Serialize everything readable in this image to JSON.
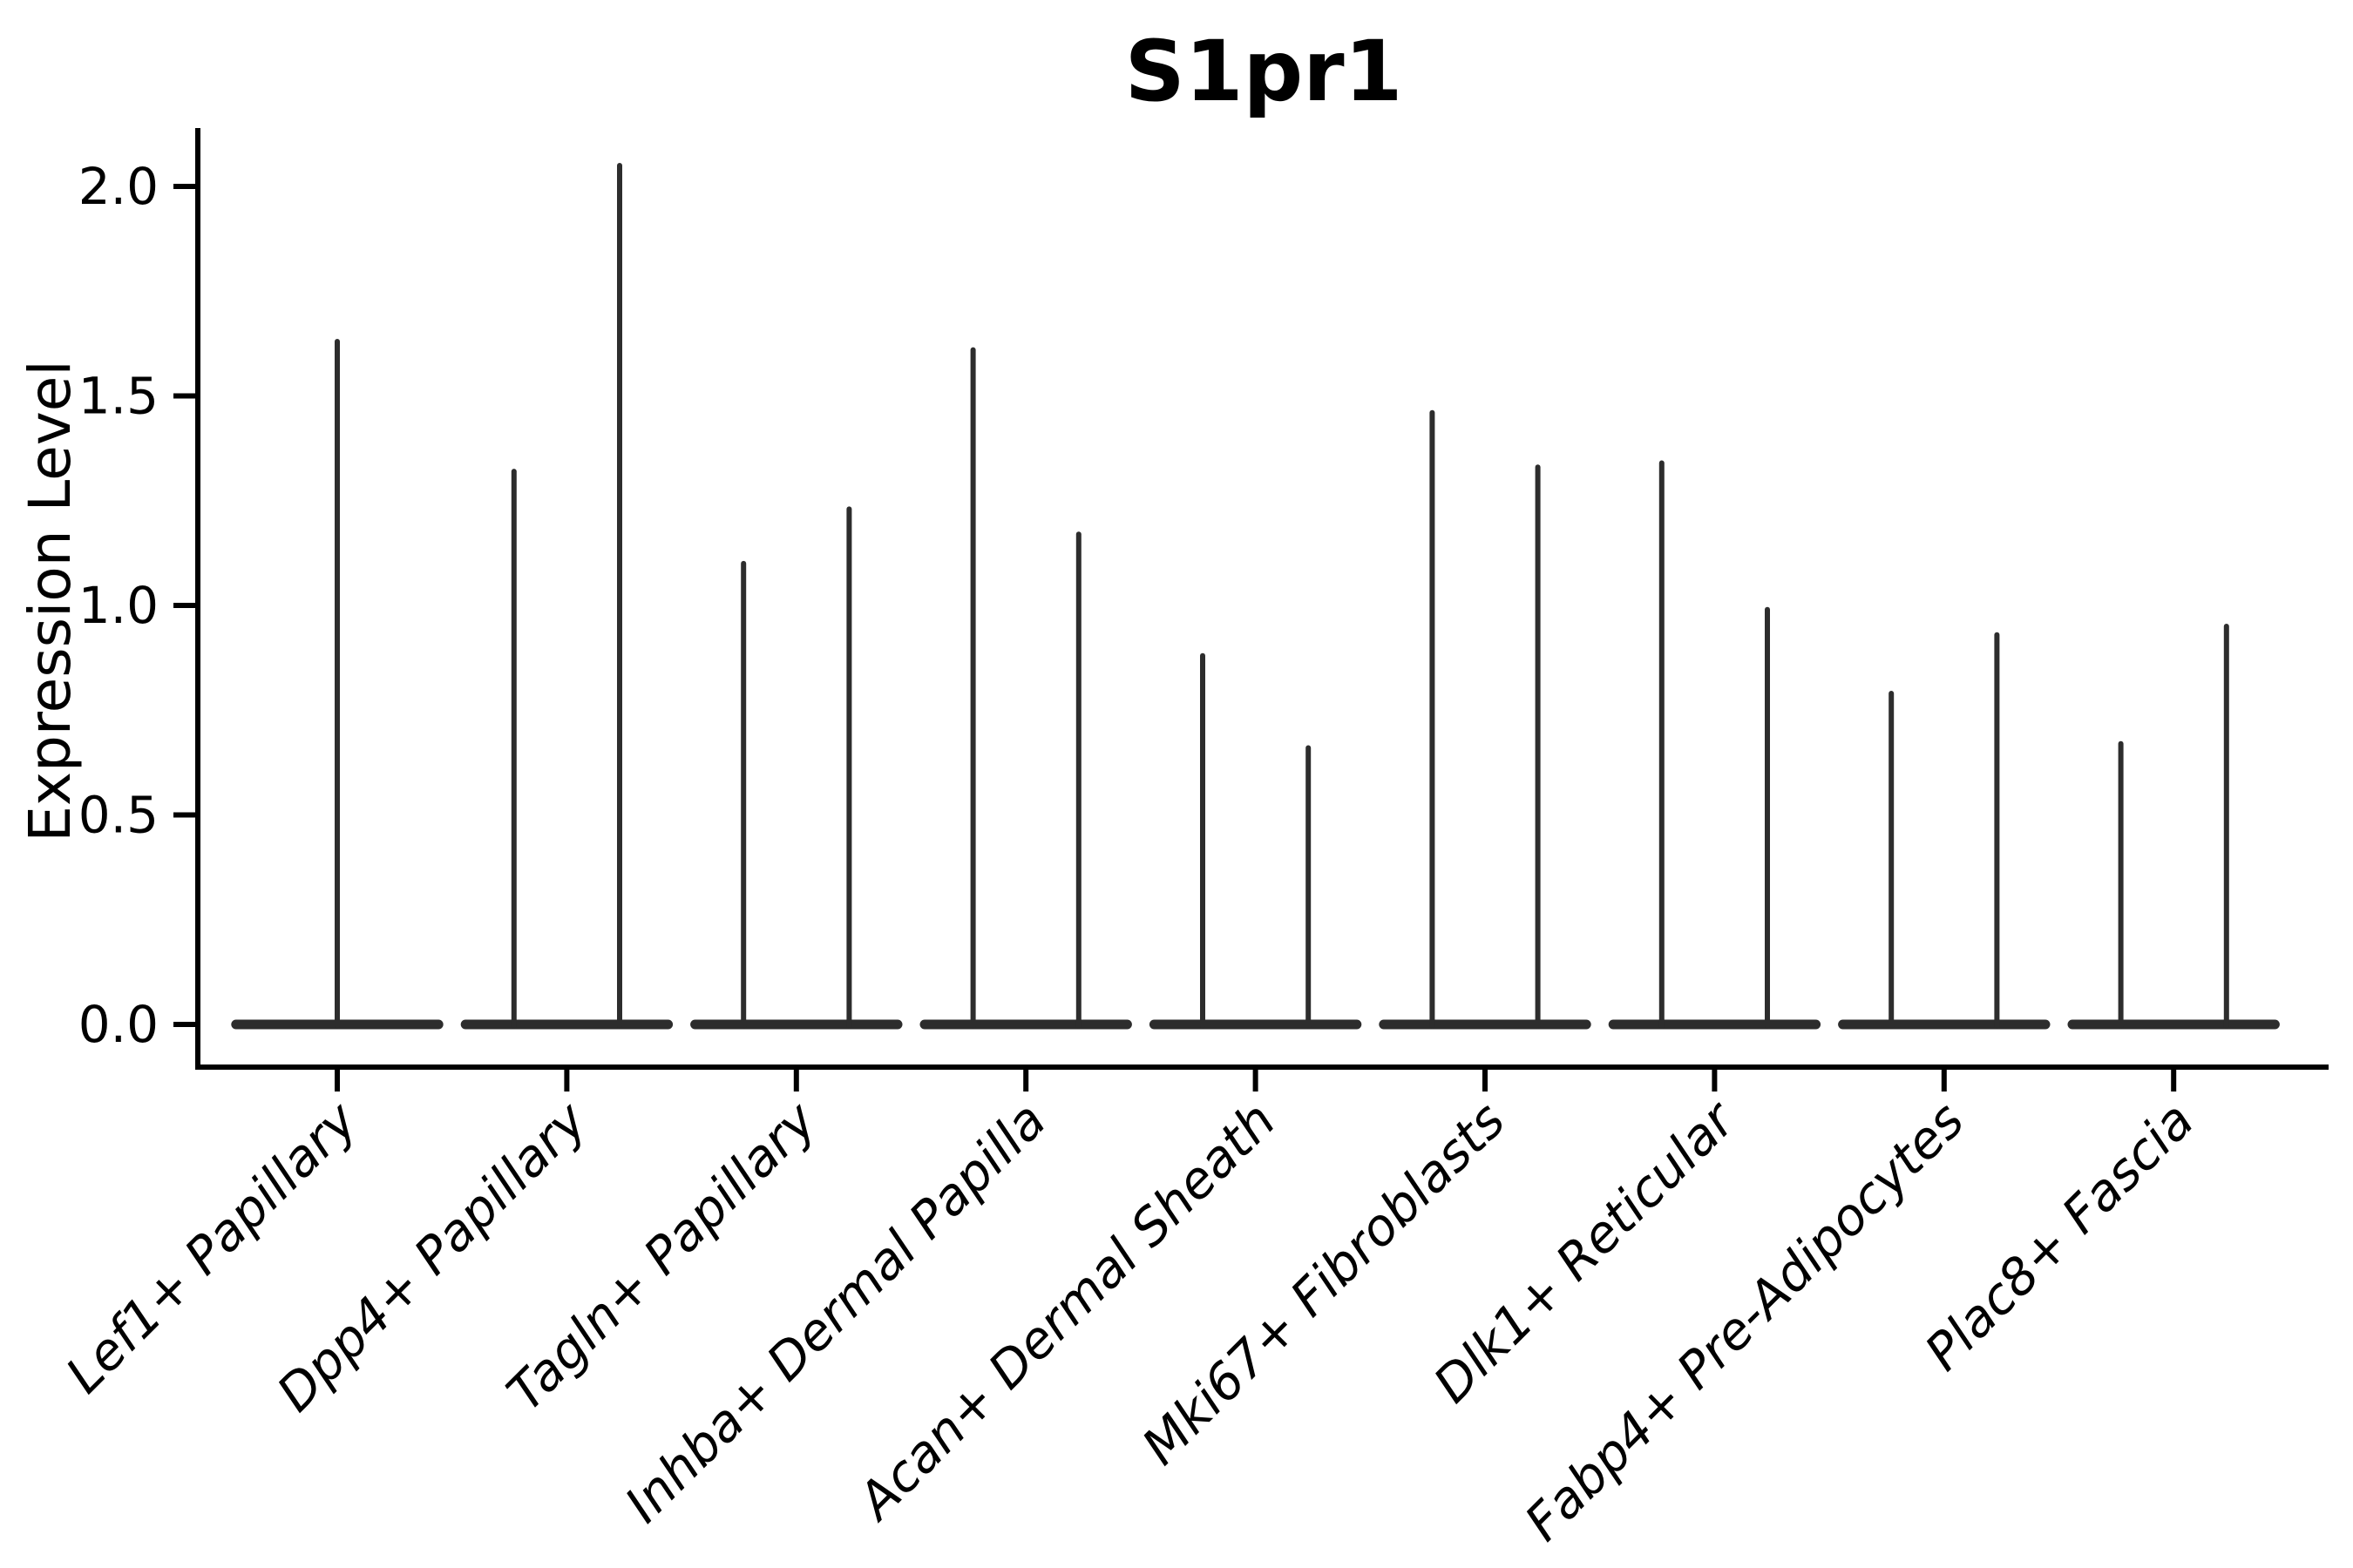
{
  "chart_data": {
    "type": "violin",
    "title": "S1pr1",
    "ylabel": "Expression Level",
    "xlabel": "",
    "ylim": [
      -0.1,
      2.13
    ],
    "yticks": [
      {
        "value": 0.0,
        "label": "0.0"
      },
      {
        "value": 0.5,
        "label": "0.5"
      },
      {
        "value": 1.0,
        "label": "1.0"
      },
      {
        "value": 1.5,
        "label": "1.5"
      },
      {
        "value": 2.0,
        "label": "2.0"
      }
    ],
    "grid": false,
    "legend_position": "none",
    "x_tick_rotation_deg": 45,
    "x_tick_style": "italic",
    "violin_color": "#2d2d2d",
    "axis_color": "#000000",
    "violin_base_halfwidth": 0.46,
    "spike_offset": 0.23,
    "baseline_value": 0.0,
    "violins": [
      {
        "category": "Lef1+ Papillary",
        "spikes": [
          {
            "offset": 0.0,
            "max": 1.63
          }
        ]
      },
      {
        "category": "Dpp4+ Papillary",
        "spikes": [
          {
            "offset": -0.23,
            "max": 1.32
          },
          {
            "offset": 0.23,
            "max": 2.05
          }
        ]
      },
      {
        "category": "Tagln+ Papillary",
        "spikes": [
          {
            "offset": -0.23,
            "max": 1.1
          },
          {
            "offset": 0.23,
            "max": 1.23
          }
        ]
      },
      {
        "category": "Inhba+ Dermal Papilla",
        "spikes": [
          {
            "offset": -0.23,
            "max": 1.61
          },
          {
            "offset": 0.23,
            "max": 1.17
          }
        ]
      },
      {
        "category": "Acan+ Dermal Sheath",
        "spikes": [
          {
            "offset": -0.23,
            "max": 0.88
          },
          {
            "offset": 0.23,
            "max": 0.66
          }
        ]
      },
      {
        "category": "Mki67+ Fibroblasts",
        "spikes": [
          {
            "offset": -0.23,
            "max": 1.46
          },
          {
            "offset": 0.23,
            "max": 1.33
          }
        ]
      },
      {
        "category": "Dlk1+ Reticular",
        "spikes": [
          {
            "offset": -0.23,
            "max": 1.34
          },
          {
            "offset": 0.23,
            "max": 0.99
          }
        ]
      },
      {
        "category": "Fabp4+ Pre-Adipocytes",
        "spikes": [
          {
            "offset": -0.23,
            "max": 0.79
          },
          {
            "offset": 0.23,
            "max": 0.93
          }
        ]
      },
      {
        "category": "Plac8+ Fascia",
        "spikes": [
          {
            "offset": -0.23,
            "max": 0.67
          },
          {
            "offset": 0.23,
            "max": 0.95
          }
        ]
      }
    ]
  }
}
